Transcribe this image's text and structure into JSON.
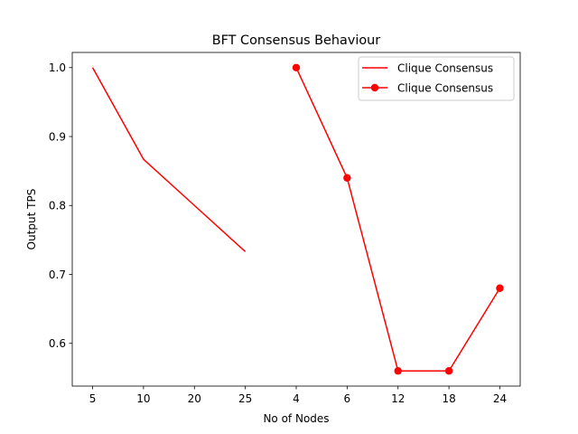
{
  "chart_data": {
    "type": "line",
    "title": "BFT Consensus Behaviour",
    "xlabel": "No of Nodes",
    "ylabel": "Output TPS",
    "categories": [
      "5",
      "10",
      "20",
      "25",
      "4",
      "6",
      "12",
      "18",
      "24"
    ],
    "ylim": [
      0.538,
      1.022
    ],
    "yticks": [
      0.6,
      0.7,
      0.8,
      0.9,
      1.0
    ],
    "ytick_labels": [
      "0.6",
      "0.7",
      "0.8",
      "0.9",
      "1.0"
    ],
    "grid": false,
    "legend_position": "top-right",
    "series": [
      {
        "name": "Clique Consensus",
        "marker": false,
        "color": "#ff0000",
        "points": [
          {
            "x": "5",
            "y": 1.0
          },
          {
            "x": "10",
            "y": 0.867
          },
          {
            "x": "20",
            "y": 0.8
          },
          {
            "x": "25",
            "y": 0.733
          }
        ]
      },
      {
        "name": "Clique Consensus",
        "marker": true,
        "color": "#ff0000",
        "points": [
          {
            "x": "4",
            "y": 1.0
          },
          {
            "x": "6",
            "y": 0.84
          },
          {
            "x": "12",
            "y": 0.56
          },
          {
            "x": "18",
            "y": 0.56
          },
          {
            "x": "24",
            "y": 0.68
          }
        ]
      }
    ]
  }
}
